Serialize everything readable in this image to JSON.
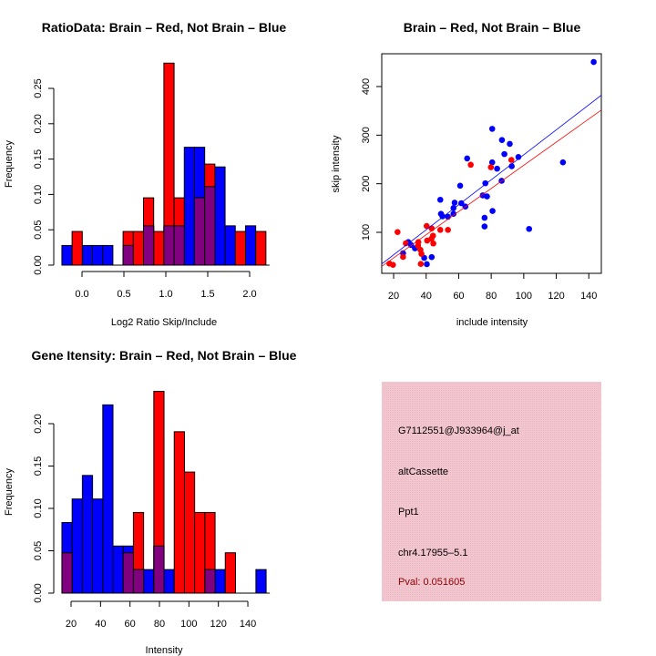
{
  "colors": {
    "red": "#ff0000",
    "blue": "#0000ff",
    "overlap": "#800080",
    "panel": "#f2c4cf",
    "pval": "#8b0000"
  },
  "chart_data": [
    {
      "type": "bar",
      "title": "RatioData: Brain – Red, Not Brain – Blue",
      "xlabel": "Log2 Ratio Skip/Include",
      "ylabel": "Frequency",
      "xticks": [
        "0.0",
        "0.5",
        "1.0",
        "1.5",
        "2.0"
      ],
      "xtick_values": [
        0,
        0.5,
        1.0,
        1.5,
        2.0
      ],
      "yticks": [
        "0.00",
        "0.05",
        "0.10",
        "0.15",
        "0.20",
        "0.25"
      ],
      "ytick_values": [
        0,
        0.05,
        0.1,
        0.15,
        0.2,
        0.25
      ],
      "bin_start": -0.24,
      "bin_width": 0.1217,
      "series": [
        {
          "name": "Not Brain",
          "color": "blue",
          "values": [
            0.0278,
            0,
            0.0278,
            0.0278,
            0.0278,
            0,
            0.0278,
            0,
            0.0556,
            0,
            0.0556,
            0.0556,
            0.1667,
            0.1667,
            0.1111,
            0.1389,
            0.0556,
            0,
            0.0556,
            0
          ]
        },
        {
          "name": "Brain",
          "color": "red",
          "values": [
            0,
            0.0476,
            0,
            0,
            0,
            0,
            0.0476,
            0.0476,
            0.0952,
            0.0476,
            0.2857,
            0.0952,
            0,
            0.0952,
            0.1429,
            0,
            0,
            0.0476,
            0,
            0.0476
          ]
        }
      ]
    },
    {
      "type": "scatter",
      "title": "Brain – Red, Not Brain – Blue",
      "xlabel": "include intensity",
      "ylabel": "skip intensity",
      "xticks": [
        "20",
        "40",
        "60",
        "80",
        "100",
        "120",
        "140"
      ],
      "xtick_values": [
        20,
        40,
        60,
        80,
        100,
        120,
        140
      ],
      "yticks": [
        "100",
        "200",
        "300",
        "400"
      ],
      "ytick_values": [
        100,
        200,
        300,
        400
      ],
      "xlim": [
        12.7,
        147.7
      ],
      "ylim": [
        15.6,
        467.5
      ],
      "series": [
        {
          "name": "Not Brain",
          "color": "blue",
          "fit": {
            "intercept": 2.3,
            "slope": 2.572
          },
          "points": [
            [
              143.0,
              450.6
            ],
            [
              80.6,
              313
            ],
            [
              86.6,
              290
            ],
            [
              91.4,
              282
            ],
            [
              88.1,
              261
            ],
            [
              96.7,
              255
            ],
            [
              92.6,
              236
            ],
            [
              80.6,
              244
            ],
            [
              83.6,
              231
            ],
            [
              86.4,
              206
            ],
            [
              76.4,
              201
            ],
            [
              124.1,
              244
            ],
            [
              65.2,
              252
            ],
            [
              60.9,
              196
            ],
            [
              74.8,
              176
            ],
            [
              77.4,
              174
            ],
            [
              75.9,
              130
            ],
            [
              75.9,
              112
            ],
            [
              80.8,
              144
            ],
            [
              103.3,
              107
            ],
            [
              48.7,
              167
            ],
            [
              57.5,
              161
            ],
            [
              61.6,
              160
            ],
            [
              64.1,
              153
            ],
            [
              56.8,
              150
            ],
            [
              49.1,
              138
            ],
            [
              50.0,
              133
            ],
            [
              53.4,
              132
            ],
            [
              56.8,
              138
            ],
            [
              29.0,
              80
            ],
            [
              30.7,
              74
            ],
            [
              33.1,
              67
            ],
            [
              25.8,
              57
            ],
            [
              38.8,
              47.5
            ],
            [
              43.4,
              49
            ],
            [
              40.4,
              34.4
            ]
          ]
        },
        {
          "name": "Brain",
          "color": "red",
          "fit": {
            "intercept": -0.3,
            "slope": 2.383
          },
          "points": [
            [
              92.4,
              249
            ],
            [
              79.8,
              234
            ],
            [
              67.4,
              239
            ],
            [
              22.4,
              100.6
            ],
            [
              40.3,
              113
            ],
            [
              43.4,
              108
            ],
            [
              48.7,
              105
            ],
            [
              53.4,
              105
            ],
            [
              44.2,
              93
            ],
            [
              43.3,
              87
            ],
            [
              40.6,
              83
            ],
            [
              44.4,
              77
            ],
            [
              27.5,
              77.5
            ],
            [
              35.2,
              80
            ],
            [
              35.0,
              72.5
            ],
            [
              36.5,
              64
            ],
            [
              37.1,
              55.6
            ],
            [
              25.8,
              49.4
            ],
            [
              17.4,
              35.6
            ],
            [
              19.6,
              33.1
            ],
            [
              36.7,
              35
            ]
          ]
        }
      ]
    },
    {
      "type": "bar",
      "title": "Gene Itensity: Brain – Red, Not Brain – Blue",
      "xlabel": "Intensity",
      "ylabel": "Frequency",
      "xticks": [
        "20",
        "40",
        "60",
        "80",
        "100",
        "120",
        "140"
      ],
      "xtick_values": [
        20,
        40,
        60,
        80,
        100,
        120,
        140
      ],
      "yticks": [
        "0.00",
        "0.05",
        "0.10",
        "0.15",
        "0.20"
      ],
      "ytick_values": [
        0,
        0.05,
        0.1,
        0.15,
        0.2
      ],
      "bin_start": 13.8,
      "bin_width": 6.93,
      "series": [
        {
          "name": "Not Brain",
          "color": "blue",
          "values": [
            0.0833,
            0.1111,
            0.1389,
            0.1111,
            0.2222,
            0.0556,
            0.0556,
            0.0278,
            0.0278,
            0.0556,
            0.0278,
            0,
            0,
            0,
            0.0278,
            0.0278,
            0,
            0,
            0,
            0.0278
          ]
        },
        {
          "name": "Brain",
          "color": "red",
          "values": [
            0.0476,
            0,
            0,
            0,
            0,
            0,
            0.0476,
            0.0952,
            0,
            0.2381,
            0,
            0.1905,
            0.1429,
            0.0952,
            0.0952,
            0,
            0.0476,
            0,
            0,
            0
          ]
        }
      ]
    }
  ],
  "info_panel": {
    "probe_id": "G7112551@J933964@j_at",
    "event_type": "altCassette",
    "gene": "Ppt1",
    "location": "chr4.17955–5.1",
    "pval": "Pval: 0.051605"
  }
}
